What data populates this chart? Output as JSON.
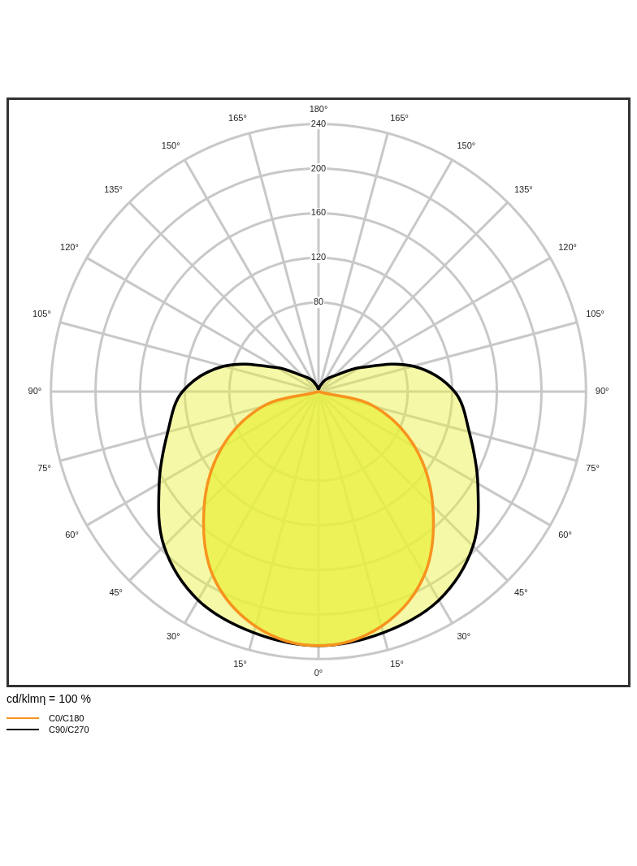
{
  "chart_data": {
    "type": "radar",
    "categories": [
      "180°",
      "165°",
      "150°",
      "135°",
      "120°",
      "105°",
      "90°",
      "75°",
      "60°",
      "45°",
      "30°",
      "15°",
      "0°",
      "15°",
      "30°",
      "45°",
      "60°",
      "75°",
      "90°",
      "105°",
      "120°",
      "135°",
      "150°",
      "165°"
    ],
    "series": [
      {
        "name": "C0/C180",
        "color": "#f7931e",
        "values": [
          0,
          0,
          0,
          0,
          0,
          0,
          0,
          52,
          100,
          145,
          190,
          218,
          228,
          218,
          190,
          145,
          100,
          52,
          0,
          0,
          0,
          0,
          0,
          0
        ]
      },
      {
        "name": "C90/C270",
        "color": "#000000",
        "values": [
          2,
          5,
          12,
          20,
          43,
          88,
          122,
          140,
          165,
          196,
          216,
          224,
          228,
          224,
          216,
          196,
          165,
          140,
          122,
          88,
          43,
          20,
          12,
          5
        ]
      }
    ],
    "ylim": [
      0,
      240
    ],
    "yticks": [
      80,
      120,
      160,
      200,
      240
    ],
    "grid": true,
    "marker": "none",
    "legend": "bottom left",
    "annotations": [
      "cd/klmη = 100 %"
    ]
  }
}
